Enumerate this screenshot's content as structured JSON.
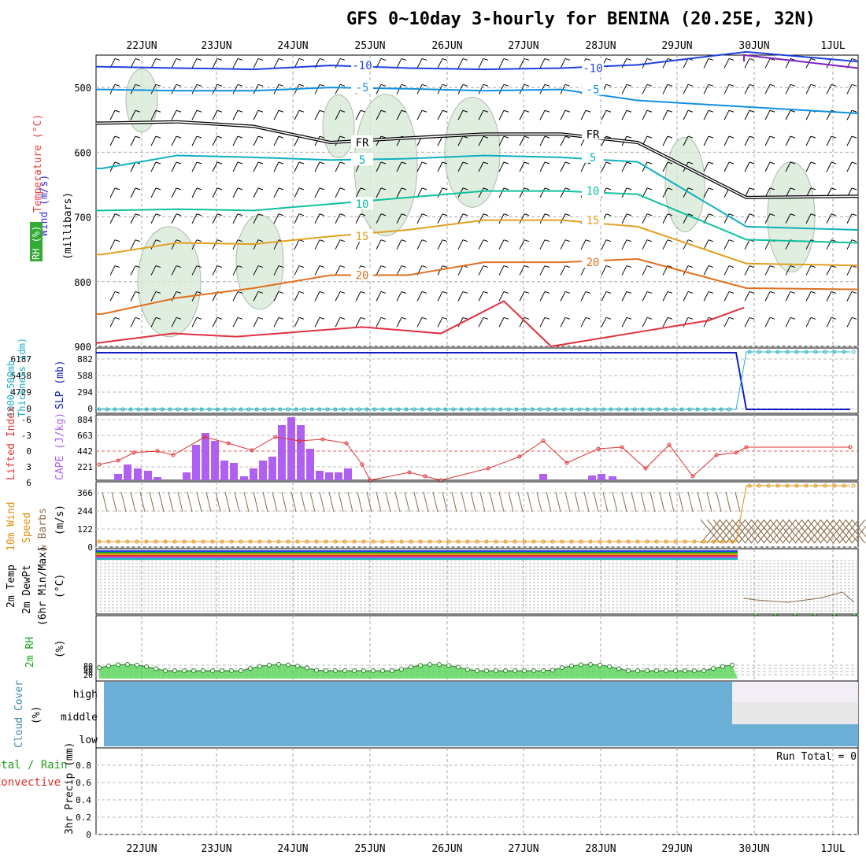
{
  "title": "GFS 0~10day 3-hourly for BENINA (20.25E, 32N)",
  "dates": [
    "22JUN",
    "23JUN",
    "24JUN",
    "25JUN",
    "26JUN",
    "27JUN",
    "28JUN",
    "29JUN",
    "30JUN",
    "1JUL"
  ],
  "colors": {
    "wind": "#3a2bd8",
    "temp": "#e84040",
    "rh": "#20a020",
    "thick": "#20b0c0",
    "slp": "#1020c0",
    "cape": "#b060f0",
    "li": "#e03030",
    "wind10": "#e09010",
    "cloud": "#6baed6",
    "precip": "#20a020"
  },
  "panels": {
    "upper": {
      "left_labels": [
        "Wind (m/s)",
        "Temperature (°C)",
        "RH (%)"
      ],
      "ylabel": "(millibars)",
      "yticks": [
        500,
        600,
        700,
        800,
        900
      ],
      "contour_labels": [
        "-10",
        "-10",
        "-5",
        "-5",
        "FR",
        "FR",
        "5",
        "5",
        "10",
        "10",
        "15",
        "15",
        "20"
      ]
    },
    "slp": {
      "labels": [
        "1000~500mb",
        "Thickness (dm)",
        "SLP (mb)"
      ],
      "left_ticks": [
        "6187",
        "5458",
        "4729",
        "0"
      ],
      "right_ticks": [
        "882",
        "588",
        "294",
        "0"
      ]
    },
    "cape": {
      "labels": [
        "Lifted Index",
        "CAPE (J/kg)"
      ],
      "left_ticks": [
        "-6",
        "-3",
        "0",
        "3",
        "6"
      ],
      "right_ticks": [
        "884",
        "663",
        "442",
        "221",
        ""
      ]
    },
    "wind10": {
      "labels": [
        "10m Wind",
        "Speed",
        "& Barbs"
      ],
      "unit": "(m/s)",
      "ticks": [
        "366",
        "244",
        "122",
        "0"
      ]
    },
    "temp2m": {
      "labels": [
        "2m Temp",
        "2m DewPt",
        "(6hr Min/Max)"
      ],
      "unit": "(°C)"
    },
    "rh2m": {
      "labels": [
        "2m RH"
      ],
      "unit": "(%)",
      "ticks": [
        "80",
        "60",
        "40",
        "20"
      ]
    },
    "cloud": {
      "labels": [
        "Cloud Cover"
      ],
      "unit": "(%)",
      "levels": [
        "high",
        "middle",
        "low"
      ]
    },
    "precip": {
      "labels": [
        "Total / Rain",
        "Convective"
      ],
      "ylabel": "3hr Precip (mm)",
      "ticks": [
        "0.8",
        "0.6",
        "0.4",
        "0.2",
        "0"
      ],
      "run_total": "Run Total = 0"
    }
  },
  "chart_data": [
    {
      "type": "line",
      "name": "upper-air",
      "title": "GFS 0~10day 3-hourly for BENINA (20.25E, 32N)",
      "ylabel": "(millibars)",
      "ylim": [
        900,
        450
      ],
      "x": [
        "22JUN",
        "23JUN",
        "24JUN",
        "25JUN",
        "26JUN",
        "27JUN",
        "28JUN",
        "29JUN",
        "30JUN",
        "1JUL"
      ],
      "series": [
        {
          "name": "-10",
          "values": [
            468,
            470,
            472,
            466,
            470,
            472,
            470,
            465,
            445,
            460
          ]
        },
        {
          "name": "-5",
          "values": [
            503,
            505,
            505,
            500,
            502,
            505,
            503,
            520,
            530,
            540
          ]
        },
        {
          "name": "FR",
          "values": [
            555,
            553,
            560,
            585,
            578,
            572,
            572,
            585,
            670,
            668
          ]
        },
        {
          "name": "5",
          "values": [
            625,
            605,
            608,
            612,
            610,
            605,
            608,
            615,
            715,
            720
          ]
        },
        {
          "name": "10",
          "values": [
            690,
            688,
            690,
            680,
            670,
            660,
            660,
            665,
            735,
            740
          ]
        },
        {
          "name": "15",
          "values": [
            758,
            740,
            742,
            730,
            720,
            705,
            705,
            715,
            772,
            775
          ]
        },
        {
          "name": "20",
          "values": [
            850,
            825,
            810,
            790,
            790,
            770,
            770,
            765,
            810,
            812
          ]
        }
      ]
    },
    {
      "type": "line",
      "name": "slp",
      "ylim": [
        0,
        884
      ],
      "series": [
        {
          "name": "SLP",
          "values": [
            882,
            882,
            882,
            882,
            882,
            882,
            882,
            882,
            0,
            0
          ]
        },
        {
          "name": "Thickness",
          "values": [
            0,
            0,
            0,
            0,
            0,
            0,
            0,
            0,
            882,
            882
          ]
        }
      ]
    },
    {
      "type": "bar",
      "name": "cape",
      "ylim": [
        0,
        884
      ],
      "categories": [
        "22JUN",
        "23JUN",
        "24JUN",
        "25JUN"
      ],
      "values": [
        130,
        480,
        640,
        110
      ]
    },
    {
      "type": "line",
      "name": "wind10",
      "ylim": [
        0,
        366
      ],
      "series": [
        {
          "name": "Speed",
          "values": [
            2,
            2,
            2,
            2,
            2,
            2,
            2,
            2,
            366,
            366
          ]
        }
      ]
    },
    {
      "type": "line",
      "name": "rh2m",
      "ylim": [
        0,
        100
      ],
      "series": [
        {
          "name": "RH",
          "values": [
            40,
            42,
            45,
            30,
            25,
            38,
            48,
            35
          ]
        }
      ]
    }
  ]
}
